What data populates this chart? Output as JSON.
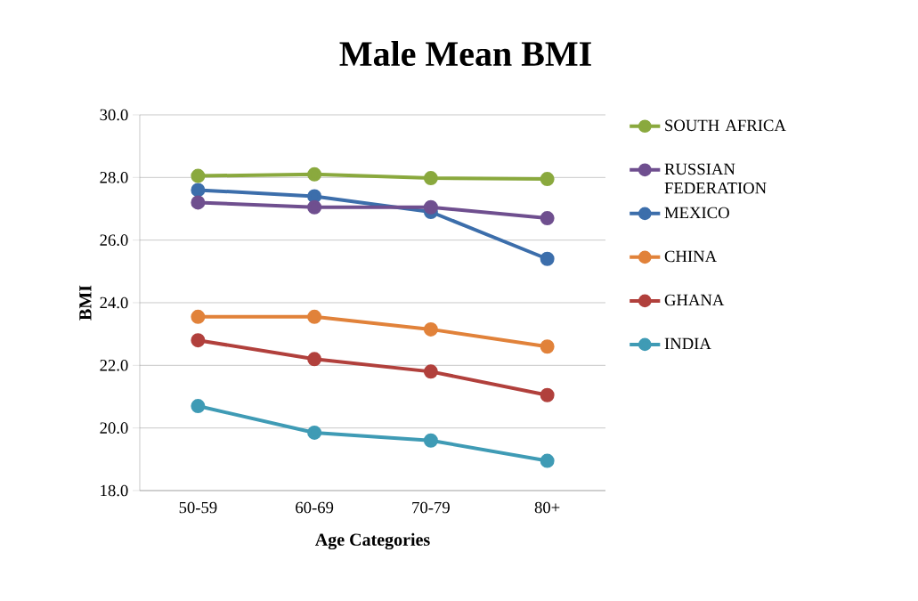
{
  "chart_data": {
    "type": "line",
    "title": "Male Mean BMI",
    "xlabel": "Age Categories",
    "ylabel": "BMI",
    "categories": [
      "50-59",
      "60-69",
      "70-79",
      "80+"
    ],
    "series": [
      {
        "name": "SOUTH AFRICA",
        "color": "#8aa93e",
        "values": [
          28.05,
          28.1,
          27.98,
          27.95
        ]
      },
      {
        "name": "RUSSIAN FEDERATION",
        "color": "#6f4f8f",
        "values": [
          27.2,
          27.05,
          27.05,
          26.7
        ]
      },
      {
        "name": "MEXICO",
        "color": "#3c6eab",
        "values": [
          27.6,
          27.4,
          26.9,
          25.4
        ]
      },
      {
        "name": "CHINA",
        "color": "#e1823a",
        "values": [
          23.55,
          23.55,
          23.15,
          22.6
        ]
      },
      {
        "name": "GHANA",
        "color": "#b1403c",
        "values": [
          22.8,
          22.2,
          21.8,
          21.05
        ]
      },
      {
        "name": "INDIA",
        "color": "#3f9bb5",
        "values": [
          20.7,
          19.85,
          19.6,
          18.95
        ]
      }
    ],
    "ylim": [
      18,
      30
    ],
    "yticks": [
      {
        "value": 18,
        "label": "18.0"
      },
      {
        "value": 20,
        "label": "20.0"
      },
      {
        "value": 22,
        "label": "22.0"
      },
      {
        "value": 24,
        "label": "24.0"
      },
      {
        "value": 26,
        "label": "26.0"
      },
      {
        "value": 28,
        "label": "28.0"
      },
      {
        "value": 30,
        "label": "30.0"
      }
    ],
    "grid": "y",
    "legend": "right",
    "marker": "circle",
    "line_style": "solid"
  }
}
